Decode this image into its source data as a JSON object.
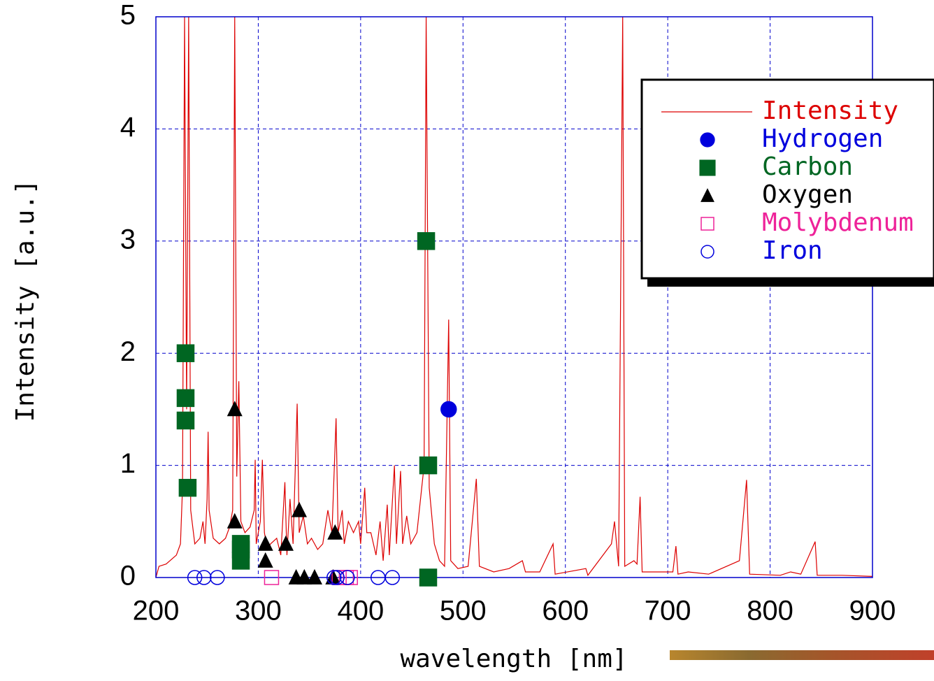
{
  "chart_data": {
    "type": "line",
    "xlabel": "wavelength [nm]",
    "ylabel": "Intensity [a.u.]",
    "xlim": [
      200,
      900
    ],
    "ylim": [
      0,
      5
    ],
    "xticks": [
      200,
      300,
      400,
      500,
      600,
      700,
      800,
      900
    ],
    "yticks": [
      0,
      1,
      2,
      3,
      4,
      5
    ],
    "grid": true,
    "series": [
      {
        "name": "Intensity",
        "color": "#dd0000",
        "marker": "line",
        "x": [
          200,
          203,
          210,
          220,
          224,
          226,
          228,
          230,
          232,
          234,
          238,
          243,
          246,
          248,
          250,
          251,
          252,
          256,
          262,
          268,
          272,
          275,
          277,
          279,
          281,
          283,
          287,
          292,
          296,
          297,
          298,
          302,
          304,
          306,
          309,
          312,
          318,
          322,
          326,
          328,
          331,
          334,
          338,
          340,
          344,
          348,
          352,
          358,
          363,
          368,
          372,
          376,
          378,
          382,
          384,
          388,
          393,
          398,
          400,
          404,
          406,
          410,
          415,
          419,
          422,
          426,
          428,
          433,
          435,
          439,
          441,
          445,
          449,
          455,
          462,
          464,
          467,
          472,
          477,
          482,
          486,
          488,
          495,
          505,
          513,
          516,
          530,
          545,
          558,
          561,
          575,
          588,
          590,
          620,
          622,
          645,
          648,
          652,
          656,
          658,
          667,
          670,
          673,
          675,
          705,
          708,
          710,
          720,
          740,
          770,
          777,
          780,
          810,
          820,
          830,
          844,
          846,
          870,
          900
        ],
        "values": [
          0,
          0.1,
          0.12,
          0.2,
          0.3,
          0.8,
          5,
          1.5,
          5,
          0.6,
          0.3,
          0.35,
          0.5,
          0.3,
          0.7,
          1.3,
          0.6,
          0.35,
          0.3,
          0.35,
          0.45,
          0.6,
          5,
          0.9,
          1.75,
          0.5,
          0.4,
          0.45,
          0.6,
          1.05,
          0.3,
          0.5,
          1.05,
          0.4,
          0.25,
          0.3,
          0.35,
          0.2,
          0.85,
          0.2,
          0.7,
          0.3,
          1.55,
          0.4,
          0.55,
          0.3,
          0.35,
          0.25,
          0.3,
          0.6,
          0.4,
          1.42,
          0.4,
          0.6,
          0.3,
          0.5,
          0.4,
          0.5,
          0.3,
          0.8,
          0.4,
          0.4,
          0.2,
          0.5,
          0.15,
          0.65,
          0.2,
          1.0,
          0.3,
          0.95,
          0.3,
          0.55,
          0.3,
          0.4,
          1.0,
          5,
          0.8,
          0.3,
          0.15,
          0.1,
          2.3,
          0.15,
          0.08,
          0.1,
          0.88,
          0.1,
          0.05,
          0.08,
          0.15,
          0.05,
          0.05,
          0.3,
          0.03,
          0.08,
          0.02,
          0.3,
          0.5,
          0.1,
          5,
          0.1,
          0.15,
          0.12,
          0.72,
          0.05,
          0.05,
          0.28,
          0.03,
          0.05,
          0.03,
          0.15,
          0.87,
          0.03,
          0.02,
          0.05,
          0.03,
          0.32,
          0.02,
          0.02,
          0.01
        ]
      },
      {
        "name": "Hydrogen",
        "color": "#0000dd",
        "marker": "circle-filled",
        "x": [
          486
        ],
        "values": [
          1.5
        ]
      },
      {
        "name": "Carbon",
        "color": "#006622",
        "marker": "square-filled",
        "x": [
          229,
          229,
          229,
          231,
          283,
          283,
          283,
          464,
          466,
          466
        ],
        "values": [
          2.0,
          1.6,
          1.4,
          0.8,
          0.3,
          0.25,
          0.15,
          3.0,
          1.0,
          0.0
        ]
      },
      {
        "name": "Oxygen",
        "color": "#000000",
        "marker": "triangle-filled",
        "x": [
          277,
          277,
          307,
          307,
          327,
          340,
          337,
          345,
          355,
          373,
          375
        ],
        "values": [
          1.5,
          0.5,
          0.3,
          0.15,
          0.3,
          0.6,
          0.0,
          0.0,
          0.0,
          0.0,
          0.4
        ]
      },
      {
        "name": "Molybdenum",
        "color": "#ee2299",
        "marker": "square-open",
        "x": [
          313,
          379,
          386,
          390
        ],
        "values": [
          0,
          0,
          0,
          0
        ]
      },
      {
        "name": "Iron",
        "color": "#0000dd",
        "marker": "circle-open",
        "x": [
          238,
          247,
          260,
          374,
          377,
          387,
          417,
          431
        ],
        "values": [
          0,
          0,
          0,
          0,
          0,
          0,
          0,
          0
        ]
      }
    ]
  }
}
